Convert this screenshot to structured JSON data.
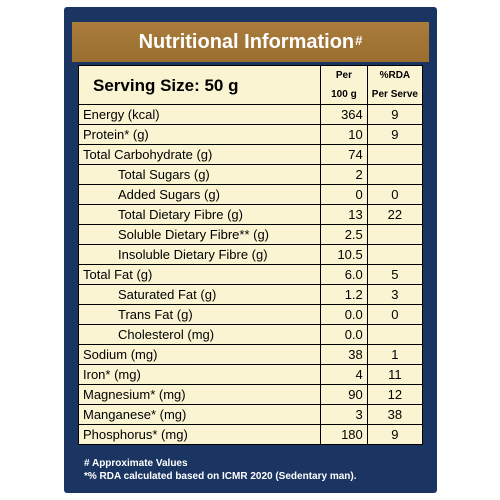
{
  "title": "Nutritional Information",
  "title_mark": "#",
  "header": {
    "serving_size": "Serving Size: 50 g",
    "col_per_line1": "Per",
    "col_per_line2": "100 g",
    "col_rda_line1": "%RDA",
    "col_rda_line2": "Per Serve"
  },
  "rows": [
    {
      "name": "Energy (kcal)",
      "per100": "364",
      "rda": "9"
    },
    {
      "name": "Protein* (g)",
      "per100": "10",
      "rda": "9"
    },
    {
      "name": "Total Carbohydrate (g)",
      "per100": "74",
      "rda": ""
    },
    {
      "name": "Total Sugars (g)",
      "per100": "2",
      "rda": ""
    },
    {
      "name": "Added Sugars (g)",
      "per100": "0",
      "rda": "0"
    },
    {
      "name": "Total Dietary Fibre (g)",
      "per100": "13",
      "rda": "22"
    },
    {
      "name": "Soluble Dietary Fibre** (g)",
      "per100": "2.5",
      "rda": ""
    },
    {
      "name": "Insoluble Dietary Fibre (g)",
      "per100": "10.5",
      "rda": ""
    },
    {
      "name": "Total Fat (g)",
      "per100": "6.0",
      "rda": "5"
    },
    {
      "name": "Saturated Fat (g)",
      "per100": "1.2",
      "rda": "3"
    },
    {
      "name": "Trans Fat (g)",
      "per100": "0.0",
      "rda": "0"
    },
    {
      "name": "Cholesterol (mg)",
      "per100": "0.0",
      "rda": ""
    },
    {
      "name": "Sodium (mg)",
      "per100": "38",
      "rda": "1"
    },
    {
      "name": "Iron* (mg)",
      "per100": "4",
      "rda": "11"
    },
    {
      "name": "Magnesium* (mg)",
      "per100": "90",
      "rda": "12"
    },
    {
      "name": "Manganese* (mg)",
      "per100": "3",
      "rda": "38"
    },
    {
      "name": "Phosphorus* (mg)",
      "per100": "180",
      "rda": "9"
    }
  ],
  "footnotes": {
    "line1": "# Approximate Values",
    "line2": "*% RDA calculated based on ICMR 2020 (Sedentary man)."
  },
  "colors": {
    "panel_background": "#1b3562",
    "title_bar": "#a97c3c",
    "table_background": "#faf4d3"
  }
}
